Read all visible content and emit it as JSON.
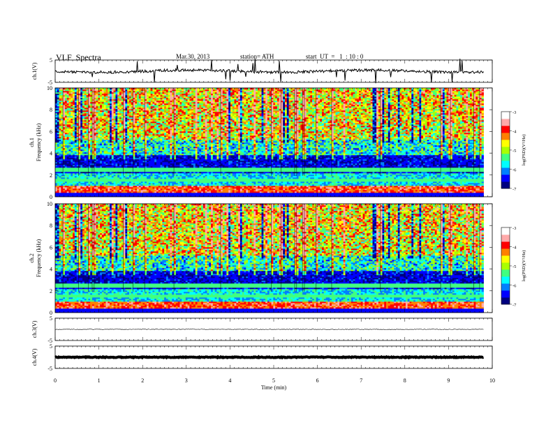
{
  "header": {
    "title": "VLF  Spectra",
    "date": "Mar.30, 2013",
    "station": "station= ATH",
    "start": "start  UT  =   1  : 10 : 0"
  },
  "colorbar": {
    "label": "log(PSD)(V²/Hz)",
    "ticks": [
      "-3",
      "-4",
      "-5",
      "-6",
      "-7"
    ],
    "colors": [
      "#000080",
      "#0000ff",
      "#0080ff",
      "#00ffff",
      "#40ff80",
      "#aaff00",
      "#ffff00",
      "#ff8000",
      "#ff0000",
      "#ffaaaa",
      "#ffffff"
    ]
  },
  "chart_data": [
    {
      "type": "line",
      "ylabel": "ch.1(V)",
      "yticks": [
        "5",
        "-5"
      ],
      "ylim": [
        -5,
        5
      ],
      "xlim": [
        0,
        10
      ],
      "trace": "noisy line near 0 V with frequent short spikes to about ±5 V",
      "end_min": 9.8
    },
    {
      "type": "heatmap",
      "ylabel_ch": "ch.1",
      "ylabel": "Frequency  (kHz)",
      "yticks": [
        "0",
        "2",
        "4",
        "6",
        "8",
        "10"
      ],
      "ylim": [
        0,
        10
      ],
      "xlim": [
        0,
        10
      ],
      "z_range": [
        -7,
        -3
      ],
      "end_min": 9.8
    },
    {
      "type": "heatmap",
      "ylabel_ch": "ch.2",
      "ylabel": "Frequency  (kHz)",
      "yticks": [
        "0",
        "2",
        "4",
        "6",
        "8",
        "10"
      ],
      "ylim": [
        0,
        10
      ],
      "xlim": [
        0,
        10
      ],
      "z_range": [
        -7,
        -3
      ],
      "end_min": 9.8
    },
    {
      "type": "line",
      "ylabel": "ch.3(V)",
      "yticks": [
        "5",
        "-5"
      ],
      "ylim": [
        -5,
        5
      ],
      "xlim": [
        0,
        10
      ],
      "trace": "flat line near 0 V",
      "end_min": 9.8
    },
    {
      "type": "line",
      "ylabel": "ch.4(V)",
      "yticks": [
        "5",
        "-5"
      ],
      "ylim": [
        -5,
        5
      ],
      "xlim": [
        0,
        10
      ],
      "trace": "thick flat band near 0 V",
      "end_min": 9.8
    }
  ],
  "xaxis": {
    "label": "Time  (min)",
    "ticks": [
      "0",
      "1",
      "2",
      "3",
      "4",
      "5",
      "6",
      "7",
      "8",
      "9",
      "10"
    ]
  }
}
